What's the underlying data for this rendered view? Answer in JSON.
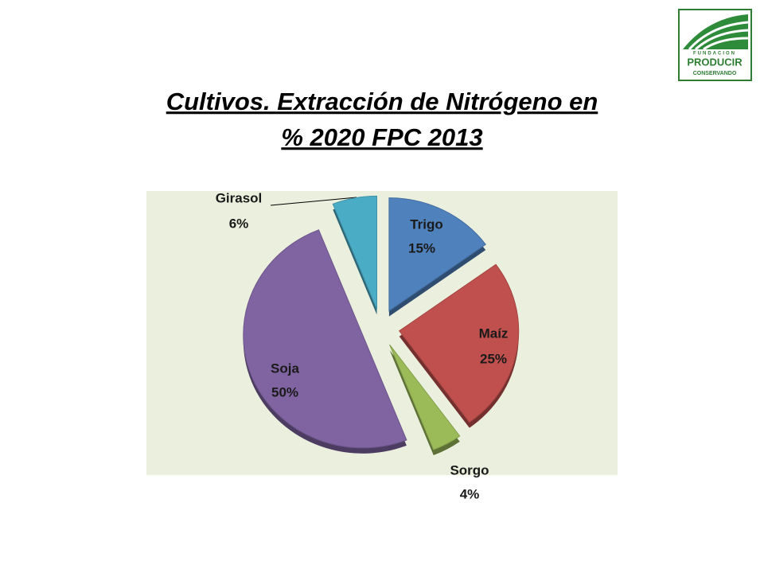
{
  "logo": {
    "line1": "FUNDACION",
    "line2": "PRODUCIR",
    "line3": "CONSERVANDO"
  },
  "chart_data": {
    "type": "pie",
    "title": [
      "Cultivos. Extracción de Nitrógeno en",
      "%  2020   FPC 2013"
    ],
    "categories": [
      "Trigo",
      "Maíz",
      "Sorgo",
      "Soja",
      "Girasol"
    ],
    "values": [
      15,
      25,
      4,
      50,
      6
    ],
    "value_labels": [
      "15%",
      "25%",
      "4%",
      "50%",
      "6%"
    ],
    "colors": [
      "#4f81bd",
      "#c0504d",
      "#9bbb59",
      "#8064a2",
      "#4bacc6"
    ]
  }
}
